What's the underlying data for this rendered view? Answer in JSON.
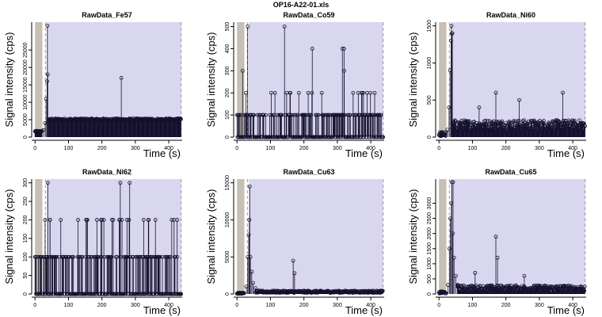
{
  "title": "OP16-A22-01.xls",
  "colors": {
    "background_region": "#d9d6ef",
    "blank_region": "#c7bfb3",
    "signal": "#14112e",
    "dashed_line": "#999999"
  },
  "chart_data": [
    {
      "type": "scatter",
      "title": "RawData_Fe57",
      "xlabel": "Time (s)",
      "ylabel": "Signal intensity (cps)",
      "xlim": [
        -10,
        440
      ],
      "ylim": [
        0,
        33000
      ],
      "xticks": [
        0,
        100,
        200,
        300,
        400
      ],
      "yticks": [
        0,
        5000,
        10000,
        15000,
        20000,
        25000
      ],
      "shaded_regions": {
        "blank": [
          0,
          22
        ],
        "background": [
          35,
          437
        ]
      },
      "dashed_lines": [
        31,
        437
      ],
      "series": [
        {
          "baseline": {
            "x_range": [
              0,
              22
            ],
            "level": 1600,
            "spread": 400
          },
          "ramp": [
            [
              25,
              2000
            ],
            [
              30,
              4000
            ],
            [
              33,
              11000
            ],
            [
              36,
              16000
            ],
            [
              38,
              18000
            ]
          ],
          "spike_points": [
            [
              37,
              32000
            ],
            [
              258,
              17000
            ]
          ],
          "plateau": {
            "x_range": [
              40,
              437
            ],
            "level": 5000,
            "spread": 700
          }
        }
      ]
    },
    {
      "type": "scatter",
      "title": "RawData_Co59",
      "xlabel": "Time (s)",
      "ylabel": "Signal intensity (cps)",
      "xlim": [
        -10,
        440
      ],
      "ylim": [
        0,
        520
      ],
      "xticks": [
        0,
        100,
        200,
        300,
        400
      ],
      "yticks": [
        0,
        100,
        200,
        300,
        400,
        500
      ],
      "shaded_regions": {
        "blank": [
          0,
          22
        ],
        "background": [
          35,
          437
        ]
      },
      "dashed_lines": [
        31,
        437
      ],
      "series": [
        {
          "levels": [
            0,
            100,
            200,
            300
          ],
          "spike_points": [
            [
              32,
              500
            ],
            [
              142,
              500
            ],
            [
              315,
              400
            ],
            [
              320,
              400
            ],
            [
              225,
              400
            ]
          ],
          "plateau": {
            "x_range": [
              0,
              437
            ],
            "level": 0,
            "spread": 0
          }
        }
      ]
    },
    {
      "type": "scatter",
      "title": "RawData_Ni60",
      "xlabel": "Time (s)",
      "ylabel": "Signal intensity (cps)",
      "xlim": [
        -10,
        440
      ],
      "ylim": [
        0,
        1550
      ],
      "xticks": [
        0,
        100,
        200,
        300,
        400
      ],
      "yticks": [
        0,
        500,
        1000,
        1500
      ],
      "shaded_regions": {
        "blank": [
          0,
          22
        ],
        "background": [
          35,
          437
        ]
      },
      "dashed_lines": [
        31,
        437
      ],
      "series": [
        {
          "baseline": {
            "x_range": [
              0,
              22
            ],
            "level": 40,
            "spread": 60
          },
          "ramp": [
            [
              25,
              100
            ],
            [
              30,
              400
            ],
            [
              33,
              900
            ],
            [
              36,
              1300
            ],
            [
              38,
              1400
            ]
          ],
          "spike_points": [
            [
              37,
              1500
            ],
            [
              40,
              1400
            ],
            [
              120,
              400
            ],
            [
              170,
              600
            ],
            [
              240,
              500
            ],
            [
              370,
              600
            ]
          ],
          "plateau": {
            "x_range": [
              40,
              437
            ],
            "level": 160,
            "spread": 140
          }
        }
      ]
    },
    {
      "type": "scatter",
      "title": "RawData_Ni62",
      "xlabel": "Time (s)",
      "ylabel": "Signal intensity (cps)",
      "xlim": [
        -10,
        440
      ],
      "ylim": [
        0,
        310
      ],
      "xticks": [
        0,
        100,
        200,
        300,
        400
      ],
      "yticks": [
        0,
        50,
        100,
        150,
        200,
        250,
        300
      ],
      "shaded_regions": {
        "blank": [
          0,
          22
        ],
        "background": [
          35,
          437
        ]
      },
      "dashed_lines": [
        31,
        437
      ],
      "series": [
        {
          "levels": [
            0,
            100,
            200,
            300
          ],
          "spike_points": [
            [
              38,
              300
            ],
            [
              255,
              300
            ],
            [
              283,
              300
            ],
            [
              30,
              200
            ],
            [
              45,
              200
            ],
            [
              185,
              200
            ],
            [
              200,
              200
            ],
            [
              230,
              200
            ],
            [
              260,
              200
            ],
            [
              275,
              200
            ],
            [
              340,
              200
            ],
            [
              360,
              200
            ],
            [
              425,
              200
            ]
          ],
          "plateau": {
            "x_range": [
              0,
              437
            ],
            "level": 0,
            "spread": 0
          }
        }
      ]
    },
    {
      "type": "scatter",
      "title": "RawData_Cu63",
      "xlabel": "Time (s)",
      "ylabel": "Signal intensity (cps)",
      "xlim": [
        -10,
        440
      ],
      "ylim": [
        0,
        15500
      ],
      "xticks": [
        0,
        100,
        200,
        300,
        400
      ],
      "yticks": [
        0,
        5000,
        10000,
        15000
      ],
      "shaded_regions": {
        "blank": [
          0,
          22
        ],
        "background": [
          35,
          437
        ]
      },
      "dashed_lines": [
        31,
        437
      ],
      "series": [
        {
          "baseline": {
            "x_range": [
              0,
              22
            ],
            "level": 100,
            "spread": 150
          },
          "ramp": [
            [
              28,
              1000
            ],
            [
              32,
              5000
            ],
            [
              35,
              8000
            ],
            [
              37,
              10000
            ],
            [
              40,
              5000
            ],
            [
              44,
              3000
            ],
            [
              48,
              1500
            ],
            [
              55,
              800
            ]
          ],
          "spike_points": [
            [
              38,
              14500
            ],
            [
              168,
              4500
            ],
            [
              172,
              2800
            ]
          ],
          "plateau": {
            "x_range": [
              55,
              437
            ],
            "level": 300,
            "spread": 300
          }
        }
      ]
    },
    {
      "type": "scatter",
      "title": "RawData_Cu65",
      "xlabel": "Time (s)",
      "ylabel": "Signal intensity (cps)",
      "xlim": [
        -10,
        440
      ],
      "ylim": [
        0,
        3800
      ],
      "xticks": [
        0,
        100,
        200,
        300,
        400
      ],
      "yticks": [
        0,
        500,
        1000,
        1500,
        2000,
        2500,
        3000
      ],
      "shaded_regions": {
        "blank": [
          0,
          22
        ],
        "background": [
          35,
          437
        ]
      },
      "dashed_lines": [
        31,
        437
      ],
      "series": [
        {
          "baseline": {
            "x_range": [
              0,
              22
            ],
            "level": 50,
            "spread": 80
          },
          "ramp": [
            [
              27,
              300
            ],
            [
              31,
              1500
            ],
            [
              34,
              2500
            ],
            [
              37,
              3000
            ],
            [
              41,
              2000
            ],
            [
              45,
              1200
            ],
            [
              50,
              600
            ],
            [
              56,
              300
            ]
          ],
          "spike_points": [
            [
              38,
              3700
            ],
            [
              42,
              3700
            ],
            [
              170,
              1900
            ],
            [
              175,
              1200
            ],
            [
              108,
              700
            ],
            [
              255,
              600
            ]
          ],
          "plateau": {
            "x_range": [
              55,
              437
            ],
            "level": 180,
            "spread": 220
          }
        }
      ]
    }
  ]
}
